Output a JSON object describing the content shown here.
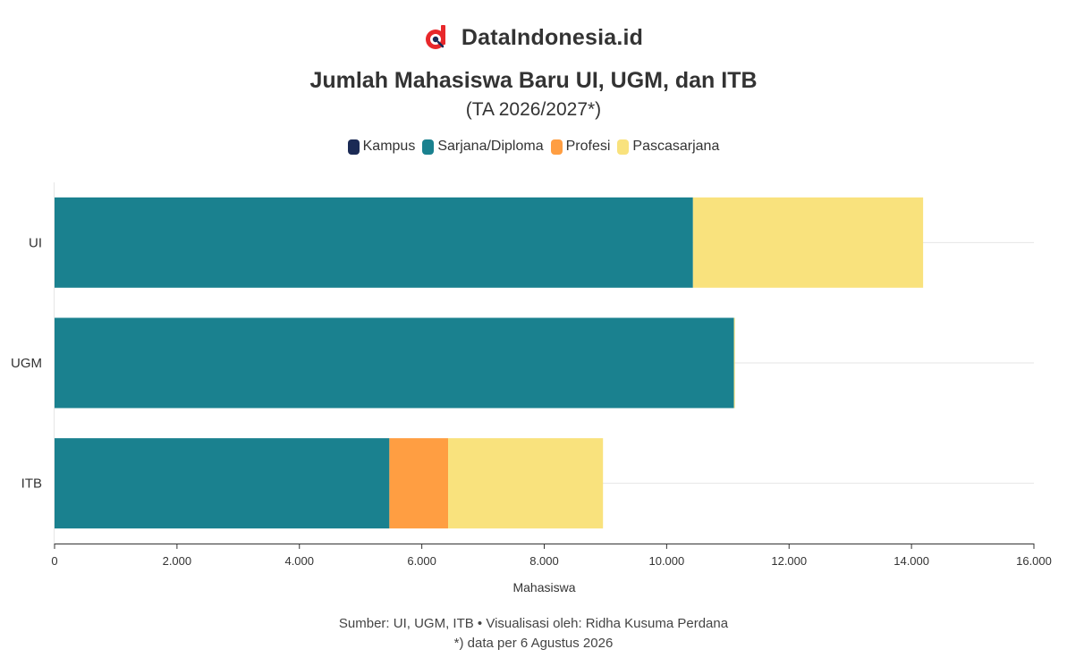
{
  "brand": {
    "name": "DataIndonesia.id",
    "logo_icon": "datalogo-icon",
    "logo_color": "#e8282b"
  },
  "chart_data": {
    "type": "bar",
    "orientation": "horizontal",
    "stacked": true,
    "title": "Jumlah Mahasiswa Baru UI, UGM, dan ITB",
    "subtitle": "(TA 2026/2027*)",
    "categories": [
      "UI",
      "UGM",
      "ITB"
    ],
    "series": [
      {
        "name": "Kampus",
        "color": "#1b2a55",
        "values": [
          0,
          0,
          0
        ]
      },
      {
        "name": "Sarjana/Diploma",
        "color": "#1a818f",
        "values": [
          10430,
          11100,
          5470
        ]
      },
      {
        "name": "Profesi",
        "color": "#ff9e42",
        "values": [
          0,
          0,
          960
        ]
      },
      {
        "name": "Pascasarjana",
        "color": "#f9e27d",
        "values": [
          3760,
          15,
          2530
        ]
      }
    ],
    "xlabel": "Mahasiswa",
    "xlim": [
      0,
      16000
    ],
    "xticks": [
      "0",
      "2.000",
      "4.000",
      "6.000",
      "8.000",
      "10.000",
      "12.000",
      "14.000",
      "16.000"
    ],
    "grid": true,
    "legend_position": "top-center"
  },
  "footer": {
    "source": "Sumber: UI, UGM, ITB • Visualisasi oleh: Ridha Kusuma Perdana",
    "note": "*) data per 6 Agustus 2026"
  }
}
